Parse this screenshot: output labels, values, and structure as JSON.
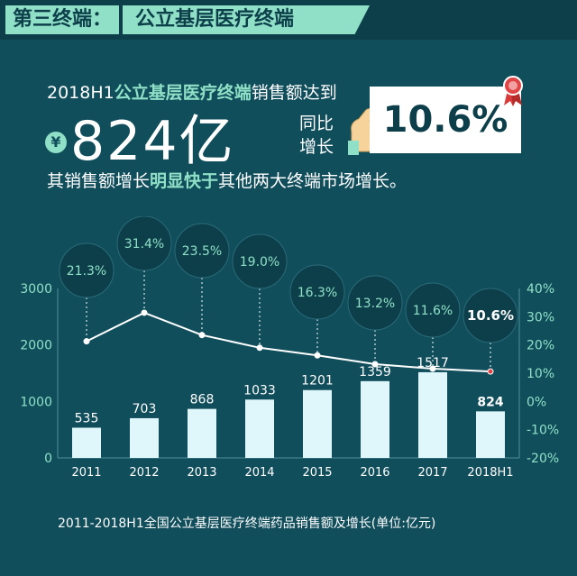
{
  "header": {
    "section_label": "第三终端：",
    "section_title": "公立基层医疗终端"
  },
  "headline": {
    "prefix": "2018H1",
    "highlight": "公立基层医疗终端",
    "suffix": "销售额达到"
  },
  "big_value": {
    "currency_symbol": "¥",
    "value": "824亿"
  },
  "growth": {
    "label_line1": "同比",
    "label_line2": "增长",
    "value": "10.6%"
  },
  "subline": {
    "prefix": "其销售额增长",
    "highlight": "明显快于",
    "suffix": "其他两大终端市场增长。"
  },
  "caption": "2011-2018H1全国公立基层医疗终端药品销售额及增长(单位:亿元)",
  "colors": {
    "background": "#104e5c",
    "accent": "#8fe0c6",
    "bar": "#dff6fb",
    "bubble": "#0d3f4b"
  },
  "chart_data": {
    "type": "bar",
    "categories": [
      "2011",
      "2012",
      "2013",
      "2014",
      "2015",
      "2016",
      "2017",
      "2018H1"
    ],
    "series": [
      {
        "type": "bar",
        "axis": "left",
        "values": [
          535,
          703,
          868,
          1033,
          1201,
          1359,
          1517,
          824
        ],
        "labels": [
          "535",
          "703",
          "868",
          "1033",
          "1201",
          "1359",
          "1517",
          "824"
        ]
      },
      {
        "type": "line",
        "axis": "right",
        "values": [
          21.3,
          31.4,
          23.5,
          19.0,
          16.3,
          13.2,
          11.6,
          10.6
        ],
        "labels": [
          "21.3%",
          "31.4%",
          "23.5%",
          "19.0%",
          "16.3%",
          "13.2%",
          "11.6%",
          "10.6%"
        ]
      }
    ],
    "left_axis": {
      "ticks": [
        "0",
        "1000",
        "2000",
        "3000"
      ],
      "ylim": [
        0,
        3000
      ]
    },
    "right_axis": {
      "ticks": [
        "-20%",
        "-10%",
        "0%",
        "10%",
        "20%",
        "30%",
        "40%"
      ],
      "ylim": [
        -20,
        40
      ]
    },
    "grid": false,
    "legend": "none"
  }
}
